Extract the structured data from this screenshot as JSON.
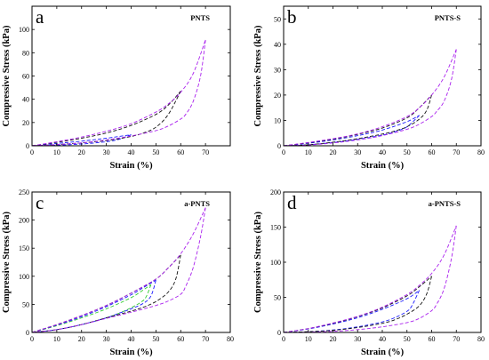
{
  "colors": {
    "axis": "#000000",
    "curve_20": "#33cc33",
    "curve_40": "#1a1aff",
    "curve_60": "#111111",
    "curve_70": "#aa22ee"
  },
  "chart_data": [
    {
      "type": "line",
      "panel_letter": "a",
      "panel_label": "PNTS",
      "xlabel": "Strain (%)",
      "ylabel": "Compressive Stress (kPa)",
      "xlim": [
        0,
        80
      ],
      "ylim": [
        0,
        120
      ],
      "xticks": [
        0,
        10,
        20,
        30,
        40,
        50,
        60,
        70
      ],
      "yticks": [
        0,
        20,
        40,
        60,
        80,
        100
      ],
      "series": [
        {
          "color": "#1a1aff",
          "style": "dashed",
          "loading": {
            "x": [
              0,
              10,
              20,
              30,
              35,
              40
            ],
            "y": [
              0,
              2,
              4,
              6.5,
              8,
              9.5
            ]
          },
          "unloading": {
            "x": [
              40,
              35,
              30,
              20,
              10,
              0
            ],
            "y": [
              9.5,
              5.5,
              3.5,
              1.5,
              0.5,
              0
            ]
          }
        },
        {
          "color": "#111111",
          "style": "dashed",
          "loading": {
            "x": [
              0,
              10,
              20,
              30,
              40,
              50,
              55,
              60
            ],
            "y": [
              0,
              3,
              6.5,
              11,
              17.5,
              27,
              35,
              47
            ]
          },
          "unloading": {
            "x": [
              60,
              55,
              50,
              45,
              40,
              30,
              20,
              10,
              0
            ],
            "y": [
              47,
              27,
              16,
              11,
              8,
              4.5,
              2.5,
              1,
              0
            ]
          }
        },
        {
          "color": "#aa22ee",
          "style": "dashed",
          "loading": {
            "x": [
              0,
              10,
              20,
              30,
              40,
              50,
              55,
              60,
              65,
              70
            ],
            "y": [
              0,
              3.5,
              7.5,
              12.5,
              19,
              29,
              36,
              46,
              62,
              91
            ]
          },
          "unloading": {
            "x": [
              70,
              68,
              65,
              62,
              60,
              55,
              50,
              40,
              30,
              20,
              10,
              0
            ],
            "y": [
              91,
              60,
              38,
              27,
              23,
              17,
              13,
              8.5,
              5,
              2.5,
              1,
              0
            ]
          }
        }
      ]
    },
    {
      "type": "line",
      "panel_letter": "b",
      "panel_label": "PNTS-S",
      "xlabel": "Strain (%)",
      "ylabel": "Compressive Stress (kPa)",
      "xlim": [
        0,
        80
      ],
      "ylim": [
        0,
        55
      ],
      "xticks": [
        0,
        10,
        20,
        30,
        40,
        50,
        60,
        70,
        80
      ],
      "yticks": [
        0,
        10,
        20,
        30,
        40,
        50
      ],
      "series": [
        {
          "color": "#1a1aff",
          "style": "dashed",
          "loading": {
            "x": [
              0,
              10,
              20,
              30,
              40,
              50,
              55
            ],
            "y": [
              0,
              1,
              2.3,
              4,
              6.2,
              9.5,
              12
            ]
          },
          "unloading": {
            "x": [
              55,
              50,
              45,
              40,
              30,
              20,
              10,
              0
            ],
            "y": [
              12,
              7.5,
              5.5,
              4.2,
              2.5,
              1.3,
              0.4,
              0
            ]
          }
        },
        {
          "color": "#111111",
          "style": "dashed",
          "loading": {
            "x": [
              0,
              10,
              20,
              30,
              40,
              50,
              55,
              60
            ],
            "y": [
              0,
              1.2,
              2.6,
              4.5,
              7,
              11,
              15,
              20
            ]
          },
          "unloading": {
            "x": [
              60,
              58,
              55,
              50,
              45,
              40,
              30,
              20,
              10,
              0
            ],
            "y": [
              20,
              14,
              10.5,
              7.5,
              5.8,
              4.6,
              2.8,
              1.4,
              0.4,
              0
            ]
          }
        },
        {
          "color": "#aa22ee",
          "style": "dashed",
          "loading": {
            "x": [
              0,
              10,
              20,
              30,
              40,
              50,
              55,
              60,
              65,
              70
            ],
            "y": [
              0,
              1.3,
              2.8,
              4.7,
              7.5,
              11.5,
              15,
              20,
              27,
              38
            ]
          },
          "unloading": {
            "x": [
              70,
              68,
              65,
              62,
              60,
              55,
              50,
              40,
              30,
              20,
              10,
              0
            ],
            "y": [
              38,
              26,
              17.5,
              13.5,
              11.5,
              8.5,
              6.5,
              4,
              2.3,
              1.1,
              0.3,
              0
            ]
          }
        }
      ]
    },
    {
      "type": "line",
      "panel_letter": "c",
      "panel_label": "a-PNTS",
      "xlabel": "Strain (%)",
      "ylabel": "Compressive Stress (kPa)",
      "xlim": [
        0,
        80
      ],
      "ylim": [
        0,
        250
      ],
      "xticks": [
        0,
        10,
        20,
        30,
        40,
        50,
        60,
        70,
        80
      ],
      "yticks": [
        0,
        50,
        100,
        150,
        200,
        250
      ],
      "series": [
        {
          "color": "#33cc33",
          "style": "dashed",
          "loading": {
            "x": [
              0,
              10,
              20,
              30,
              40,
              45,
              48
            ],
            "y": [
              0,
              12,
              26,
              42,
              62,
              76,
              85
            ]
          },
          "unloading": {
            "x": [
              48,
              46,
              44,
              40,
              35,
              30,
              20,
              10,
              0
            ],
            "y": [
              85,
              63,
              54,
              44,
              34,
              26,
              14,
              5,
              0
            ]
          }
        },
        {
          "color": "#1a1aff",
          "style": "dashed",
          "loading": {
            "x": [
              0,
              10,
              20,
              30,
              40,
              45,
              50
            ],
            "y": [
              0,
              13,
              28,
              46,
              67,
              80,
              93
            ]
          },
          "unloading": {
            "x": [
              50,
              48,
              45,
              40,
              35,
              30,
              20,
              10,
              0
            ],
            "y": [
              93,
              65,
              52,
              42,
              34,
              26,
              14,
              5,
              0
            ]
          }
        },
        {
          "color": "#111111",
          "style": "dashed",
          "loading": {
            "x": [
              0,
              10,
              20,
              30,
              40,
              50,
              55,
              60
            ],
            "y": [
              0,
              14,
              30,
              48,
              70,
              95,
              115,
              138
            ]
          },
          "unloading": {
            "x": [
              60,
              58,
              55,
              50,
              45,
              40,
              30,
              20,
              10,
              0
            ],
            "y": [
              138,
              95,
              72,
              55,
              45,
              38,
              26,
              14,
              5,
              0
            ]
          }
        },
        {
          "color": "#aa22ee",
          "style": "dashed",
          "loading": {
            "x": [
              0,
              10,
              20,
              30,
              40,
              50,
              55,
              60,
              65,
              70
            ],
            "y": [
              0,
              14,
              30,
              48,
              70,
              95,
              115,
              140,
              175,
              222
            ]
          },
          "unloading": {
            "x": [
              70,
              68,
              65,
              62,
              60,
              55,
              50,
              40,
              30,
              20,
              10,
              0
            ],
            "y": [
              222,
              170,
              115,
              82,
              68,
              56,
              48,
              36,
              25,
              14,
              5,
              0
            ]
          }
        }
      ]
    },
    {
      "type": "line",
      "panel_letter": "d",
      "panel_label": "a-PNTS-S",
      "xlabel": "Strain (%)",
      "ylabel": "Compressive Stress (kPa)",
      "xlim": [
        0,
        80
      ],
      "ylim": [
        0,
        200
      ],
      "xticks": [
        0,
        10,
        20,
        30,
        40,
        50,
        60,
        70,
        80
      ],
      "yticks": [
        0,
        50,
        100,
        150,
        200
      ],
      "series": [
        {
          "color": "#1a1aff",
          "style": "dashed",
          "loading": {
            "x": [
              0,
              10,
              20,
              30,
              40,
              50,
              55
            ],
            "y": [
              0,
              5,
              12,
              21,
              33,
              48,
              60
            ]
          },
          "unloading": {
            "x": [
              55,
              52,
              50,
              45,
              40,
              30,
              20,
              10,
              0
            ],
            "y": [
              60,
              38,
              30,
              21,
              15,
              8,
              3.5,
              1,
              0
            ]
          }
        },
        {
          "color": "#111111",
          "style": "dashed",
          "loading": {
            "x": [
              0,
              10,
              20,
              30,
              40,
              50,
              55,
              60
            ],
            "y": [
              0,
              5.5,
              13,
              22.5,
              35,
              52,
              65,
              80
            ]
          },
          "unloading": {
            "x": [
              60,
              58,
              55,
              50,
              45,
              40,
              30,
              20,
              10,
              0
            ],
            "y": [
              80,
              55,
              38,
              26,
              18,
              13,
              7,
              3,
              1,
              0
            ]
          }
        },
        {
          "color": "#aa22ee",
          "style": "dashed",
          "loading": {
            "x": [
              0,
              10,
              20,
              30,
              40,
              50,
              55,
              60,
              65,
              70
            ],
            "y": [
              0,
              5.5,
              13.5,
              23,
              36,
              54,
              67,
              84,
              110,
              152
            ]
          },
          "unloading": {
            "x": [
              70,
              68,
              65,
              62,
              60,
              55,
              50,
              40,
              30,
              20,
              10,
              0
            ],
            "y": [
              152,
              105,
              62,
              40,
              31,
              20,
              14,
              8,
              4,
              1.5,
              0.4,
              0
            ]
          }
        }
      ]
    }
  ]
}
